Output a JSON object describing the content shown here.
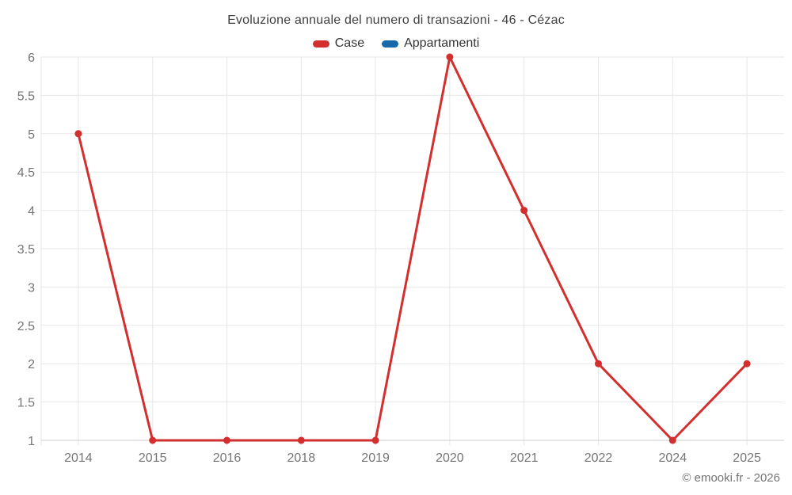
{
  "title": "Evoluzione annuale del numero di transazioni - 46 - Cézac",
  "legend": {
    "items": [
      {
        "label": "Case",
        "color": "#d32f2f"
      },
      {
        "label": "Appartamenti",
        "color": "#1769aa"
      }
    ]
  },
  "copyright": "© emooki.fr - 2026",
  "chart_data": {
    "type": "line",
    "title": "Evoluzione annuale del numero di transazioni - 46 - Cézac",
    "categories": [
      "2014",
      "2015",
      "2016",
      "2018",
      "2019",
      "2020",
      "2021",
      "2022",
      "2024",
      "2025"
    ],
    "series": [
      {
        "name": "Case",
        "color": "#d32f2f",
        "values": [
          5,
          1,
          1,
          1,
          1,
          6,
          4,
          2,
          1,
          2
        ]
      },
      {
        "name": "Appartamenti",
        "color": "#1769aa",
        "values": []
      }
    ],
    "xlabel": "",
    "ylabel": "",
    "ylim": [
      1,
      6
    ],
    "y_ticks": [
      "1",
      "1.5",
      "2",
      "2.5",
      "3",
      "3.5",
      "4",
      "4.5",
      "5",
      "5.5",
      "6"
    ],
    "grid": true,
    "legend_position": "top"
  }
}
